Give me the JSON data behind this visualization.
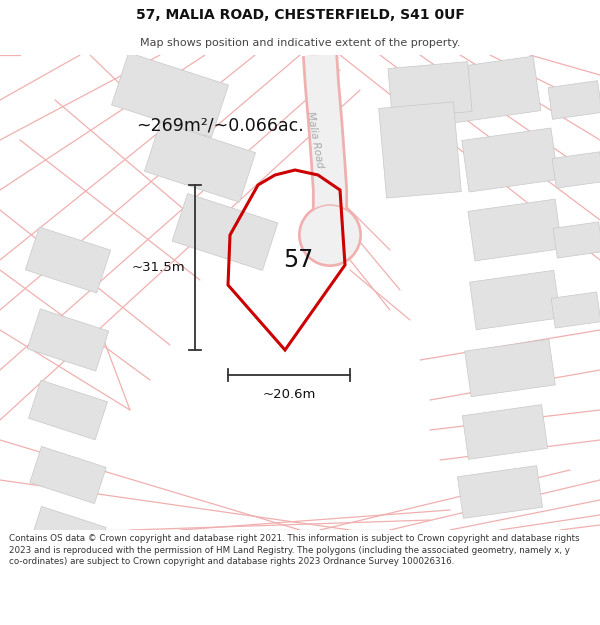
{
  "title": "57, MALIA ROAD, CHESTERFIELD, S41 0UF",
  "subtitle": "Map shows position and indicative extent of the property.",
  "area_label": "~269m²/~0.066ac.",
  "number_label": "57",
  "width_label": "~20.6m",
  "height_label": "~31.5m",
  "road_label": "Malia Road",
  "footer": "Contains OS data © Crown copyright and database right 2021. This information is subject to Crown copyright and database rights 2023 and is reproduced with the permission of HM Land Registry. The polygons (including the associated geometry, namely x, y co-ordinates) are subject to Crown copyright and database rights 2023 Ordnance Survey 100026316.",
  "bg_color": "#ffffff",
  "map_bg": "#f7f7f7",
  "plot_color": "#cc0000",
  "road_fill": "#f0f0f0",
  "building_color": "#e2e2e2",
  "building_edge": "#c8c8c8",
  "road_edge_color": "#f0b0b0",
  "line_color": "#f0b0b0",
  "dim_line_color": "#333333",
  "title_size": 10,
  "subtitle_size": 8,
  "footer_size": 6.5
}
